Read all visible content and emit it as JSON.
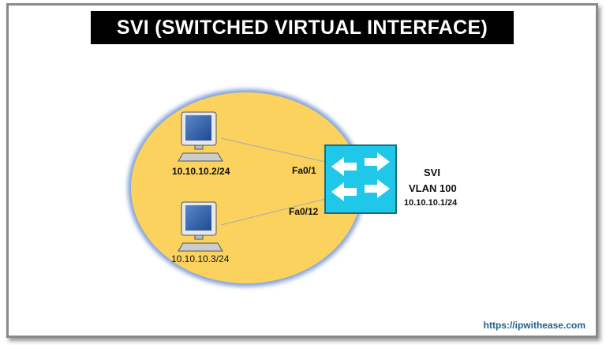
{
  "title": "SVI (SWITCHED VIRTUAL INTERFACE)",
  "hosts": [
    {
      "ip": "10.10.10.2/24",
      "port": "Fa0/1"
    },
    {
      "ip": "10.10.10.3/24",
      "port": "Fa0/12"
    }
  ],
  "switch": {
    "label": "SVI",
    "vlan": "VLAN 100",
    "ip": "10.10.10.1/24"
  },
  "watermark": "ipwithease.com",
  "footer_url": "https://ipwithease.com",
  "colors": {
    "vlan_area": "#fbd25e",
    "switch": "#1fc8e8",
    "title_bg": "#000000",
    "url": "#1f5f8b"
  }
}
